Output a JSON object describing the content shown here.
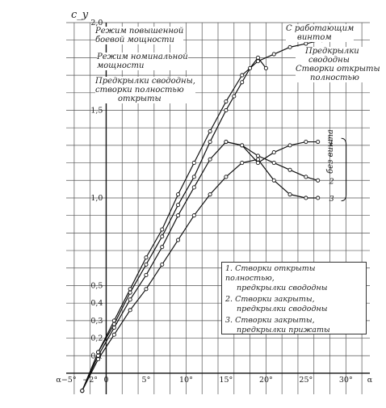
{
  "chart_data": {
    "type": "line",
    "ylabel": "c_y",
    "xlabel": "α",
    "xlim": [
      -5,
      33
    ],
    "ylim": [
      -0.12,
      2.0
    ],
    "x_ticks": [
      {
        "v": -5,
        "label": "α−5°"
      },
      {
        "v": -2,
        "label": "−2°"
      },
      {
        "v": 0,
        "label": "0"
      },
      {
        "v": 5,
        "label": "5°"
      },
      {
        "v": 10,
        "label": "10°"
      },
      {
        "v": 15,
        "label": "15°"
      },
      {
        "v": 20,
        "label": "20°"
      },
      {
        "v": 25,
        "label": "25°"
      },
      {
        "v": 30,
        "label": "30°"
      },
      {
        "v": 33,
        "label": "α"
      }
    ],
    "y_ticks": [
      {
        "v": 0.1,
        "label": "0,1"
      },
      {
        "v": 0.2,
        "label": "0,2"
      },
      {
        "v": 0.3,
        "label": "0,3"
      },
      {
        "v": 0.4,
        "label": "0,4"
      },
      {
        "v": 0.5,
        "label": "0,5"
      },
      {
        "v": 1.0,
        "label": "1,0"
      },
      {
        "v": 1.5,
        "label": "1,5"
      },
      {
        "v": 2.0,
        "label": "2,0"
      }
    ],
    "series": [
      {
        "x": [
          -3,
          -1,
          1,
          3,
          5,
          7,
          9,
          11,
          13,
          15,
          17,
          19,
          21,
          23,
          25,
          27
        ],
        "y": [
          -0.1,
          0.12,
          0.3,
          0.48,
          0.66,
          0.82,
          1.02,
          1.2,
          1.38,
          1.55,
          1.7,
          1.78,
          1.82,
          1.86,
          1.88,
          1.9
        ]
      },
      {
        "x": [
          -3,
          -1,
          1,
          3,
          5,
          7,
          9,
          11,
          13,
          15,
          16,
          17,
          18,
          19,
          20
        ],
        "y": [
          -0.1,
          0.12,
          0.28,
          0.46,
          0.62,
          0.78,
          0.96,
          1.12,
          1.32,
          1.5,
          1.58,
          1.66,
          1.74,
          1.8,
          1.74
        ]
      },
      {
        "x": [
          -3,
          -1,
          1,
          3,
          5,
          7,
          9,
          11,
          13,
          15,
          17,
          19,
          21,
          23,
          25,
          26.5
        ],
        "y": [
          -0.1,
          0.1,
          0.26,
          0.42,
          0.56,
          0.72,
          0.9,
          1.06,
          1.22,
          1.32,
          1.3,
          1.2,
          1.26,
          1.3,
          1.32,
          1.32
        ]
      },
      {
        "x": [
          15,
          17,
          19,
          21,
          23,
          25,
          26.5
        ],
        "y": [
          1.32,
          1.3,
          1.24,
          1.2,
          1.16,
          1.12,
          1.1
        ]
      },
      {
        "x": [
          -3,
          -1,
          1,
          3,
          5,
          7,
          9,
          11,
          13,
          15,
          17,
          19,
          21,
          23,
          25,
          26.5
        ],
        "y": [
          -0.1,
          0.08,
          0.22,
          0.36,
          0.48,
          0.62,
          0.76,
          0.9,
          1.02,
          1.12,
          1.2,
          1.22,
          1.1,
          1.02,
          1.0,
          1.0
        ]
      }
    ],
    "end_labels": [
      "1",
      "2",
      "3"
    ],
    "annotations": {
      "max_power": [
        "Режим повышенной",
        "боевой мощности"
      ],
      "nominal": [
        "Режим номинальной",
        "мощности"
      ],
      "slats_open": [
        "Предкрылки свододны,",
        "створки полностью",
        "открыты"
      ],
      "with_prop": [
        "С работающим",
        "винтом"
      ],
      "right_note": [
        "Предкрылки",
        "свододны",
        "Створки открыты",
        "полностью"
      ],
      "no_prop": "без винта"
    },
    "legend": [
      [
        "1. Створки открыты полностью,",
        "предкрылки свододны"
      ],
      [
        "2. Створки закрыты,",
        "предкрылки свододны"
      ],
      [
        "3. Створки закрыты,",
        "предкрылки прижаты"
      ]
    ]
  }
}
